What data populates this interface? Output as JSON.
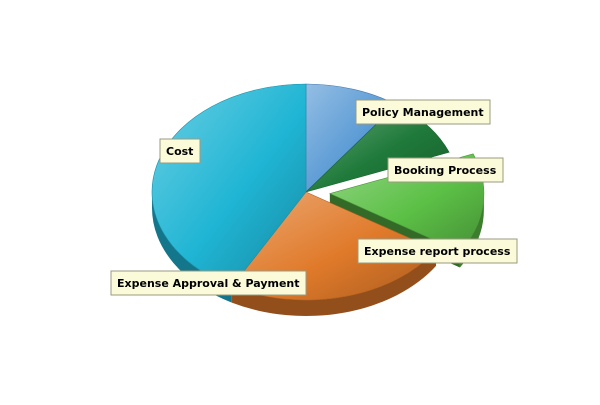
{
  "chart_data": {
    "type": "pie",
    "style": "3d-exploded",
    "title": "",
    "slices": [
      {
        "label": "Policy Management",
        "value": 10,
        "color": "#5b9bd5"
      },
      {
        "label": "Booking Process",
        "value": 9,
        "color": "#1f7a3a"
      },
      {
        "label": "Expense report process",
        "value": 15,
        "color": "#5cc046",
        "exploded": true
      },
      {
        "label": "Expense Approval & Payment",
        "value": 24,
        "color": "#e07a2a"
      },
      {
        "label": "Cost",
        "value": 42,
        "color": "#1fb5d4"
      }
    ]
  }
}
